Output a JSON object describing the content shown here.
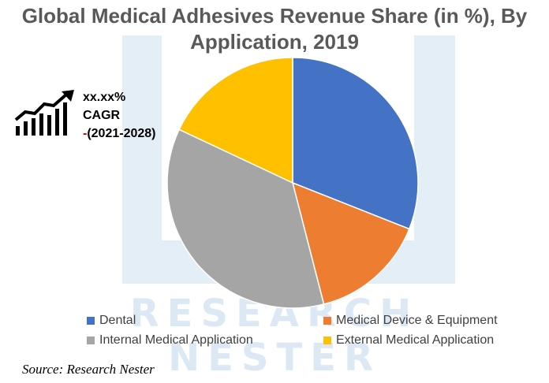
{
  "title": "Global Medical Adhesives Revenue Share (in %), By Application, 2019",
  "cagr": {
    "value": "xx.xx%",
    "label": "CAGR",
    "dash": "-",
    "period": "(2021-2028)"
  },
  "watermark": {
    "line1": "RESEARCH",
    "line2": "NESTER"
  },
  "source": "Source: Research Nester",
  "colors": {
    "dental": "#4472c4",
    "device": "#ed7d31",
    "internal": "#a5a5a5",
    "external": "#ffc000"
  },
  "chart_data": {
    "type": "pie",
    "title": "Global Medical Adhesives Revenue Share (in %), By Application, 2019",
    "categories": [
      "Dental",
      "Medical Device & Equipment",
      "Internal Medical Application",
      "External Medical Application"
    ],
    "values": [
      31,
      15,
      36,
      18
    ],
    "colors": [
      "#4472c4",
      "#ed7d31",
      "#a5a5a5",
      "#ffc000"
    ],
    "legend_position": "bottom",
    "data_labels": false
  }
}
